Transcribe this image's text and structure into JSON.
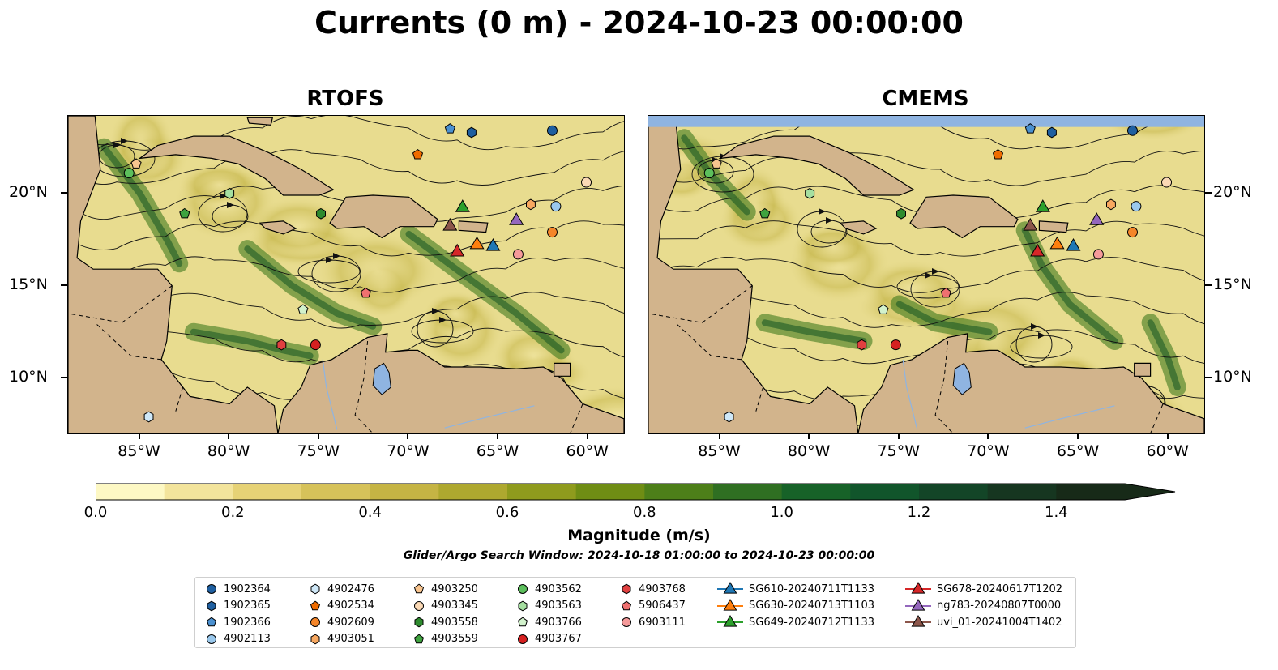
{
  "title": "Currents (0 m) - 2024-10-23 00:00:00",
  "panels": [
    {
      "title": "RTOFS"
    },
    {
      "title": "CMEMS"
    }
  ],
  "axes": {
    "lon_labels": [
      "85°W",
      "80°W",
      "75°W",
      "70°W",
      "65°W",
      "60°W"
    ],
    "lon_values": [
      -85,
      -80,
      -75,
      -70,
      -65,
      -60
    ],
    "lat_labels": [
      "20°N",
      "15°N",
      "10°N"
    ],
    "lat_values": [
      20,
      15,
      10
    ],
    "lon_range": [
      -89,
      -58
    ],
    "lat_range": [
      7,
      24.2
    ]
  },
  "colorbar": {
    "label": "Magnitude (m/s)",
    "tick_labels": [
      "0.0",
      "0.2",
      "0.4",
      "0.6",
      "0.8",
      "1.0",
      "1.2",
      "1.4"
    ],
    "tick_values": [
      0.0,
      0.2,
      0.4,
      0.6,
      0.8,
      1.0,
      1.2,
      1.4
    ],
    "range": [
      0,
      1.5
    ],
    "extend": "max",
    "colors": [
      "#fdf8c4",
      "#f3e49c",
      "#e6d276",
      "#d6c25a",
      "#c5b444",
      "#aea82f",
      "#8f9b1d",
      "#6f8d14",
      "#4d7f19",
      "#2f6f22",
      "#176228",
      "#11552b",
      "#134527",
      "#163620",
      "#172a18"
    ]
  },
  "search_window": "Glider/Argo Search Window: 2024-10-18 01:00:00 to 2024-10-23 00:00:00",
  "colors": {
    "land": "#d2b48c",
    "water_body": "#8fb4e1",
    "ocean_base": "#e8dc8f"
  },
  "legend": [
    {
      "label": "1902364",
      "marker": "circle",
      "color": "#1f5fa0"
    },
    {
      "label": "1902365",
      "marker": "hexagon",
      "color": "#1f5fa0"
    },
    {
      "label": "1902366",
      "marker": "pentagon",
      "color": "#4a90d0"
    },
    {
      "label": "4902113",
      "marker": "circle",
      "color": "#9ac8ec"
    },
    {
      "label": "4902476",
      "marker": "hexagon",
      "color": "#cfe8f8"
    },
    {
      "label": "4902534",
      "marker": "pentagon",
      "color": "#ef6c00"
    },
    {
      "label": "4902609",
      "marker": "circle",
      "color": "#f5862a"
    },
    {
      "label": "4903051",
      "marker": "hexagon",
      "color": "#f8a860"
    },
    {
      "label": "4903250",
      "marker": "pentagon",
      "color": "#f9c58f"
    },
    {
      "label": "4903345",
      "marker": "circle",
      "color": "#fbd9b5"
    },
    {
      "label": "4903558",
      "marker": "hexagon",
      "color": "#2e8b2e"
    },
    {
      "label": "4903559",
      "marker": "pentagon",
      "color": "#3fa33f"
    },
    {
      "label": "4903562",
      "marker": "circle",
      "color": "#5cbf5c"
    },
    {
      "label": "4903563",
      "marker": "hexagon",
      "color": "#a5dfa0"
    },
    {
      "label": "4903766",
      "marker": "pentagon",
      "color": "#d2f2cc"
    },
    {
      "label": "4903767",
      "marker": "circle",
      "color": "#d62020"
    },
    {
      "label": "4903768",
      "marker": "hexagon",
      "color": "#e04040"
    },
    {
      "label": "5906437",
      "marker": "pentagon",
      "color": "#ef7070"
    },
    {
      "label": "6903111",
      "marker": "circle",
      "color": "#f59a9a"
    },
    {
      "label": "SG610-20240711T1133",
      "marker": "triangle-line",
      "color": "#1f77b4"
    },
    {
      "label": "SG630-20240713T1103",
      "marker": "triangle-line",
      "color": "#ff7f0e"
    },
    {
      "label": "SG649-20240712T1133",
      "marker": "triangle-line",
      "color": "#2ca02c"
    },
    {
      "label": "SG678-20240617T1202",
      "marker": "triangle-line",
      "color": "#d62728"
    },
    {
      "label": "ng783-20240807T0000",
      "marker": "triangle-line",
      "color": "#9467bd"
    },
    {
      "label": "uvi_01-20241004T1402",
      "marker": "triangle-line",
      "color": "#8c564b"
    }
  ],
  "floats": [
    {
      "id": "1902364",
      "lon": -62,
      "lat": 23.4
    },
    {
      "id": "1902365",
      "lon": -66.5,
      "lat": 23.3
    },
    {
      "id": "1902366",
      "lon": -67.7,
      "lat": 23.5
    },
    {
      "id": "4902113",
      "lon": -61.8,
      "lat": 19.3
    },
    {
      "id": "4902476",
      "lon": -84.5,
      "lat": 7.9
    },
    {
      "id": "4902534",
      "lon": -69.5,
      "lat": 22.1
    },
    {
      "id": "4902609",
      "lon": -62,
      "lat": 17.9
    },
    {
      "id": "4903051",
      "lon": -63.2,
      "lat": 19.4
    },
    {
      "id": "4903250",
      "lon": -85.2,
      "lat": 21.6
    },
    {
      "id": "4903345",
      "lon": -60.1,
      "lat": 20.6
    },
    {
      "id": "4903558",
      "lon": -74.9,
      "lat": 18.9
    },
    {
      "id": "4903559",
      "lon": -82.5,
      "lat": 18.9
    },
    {
      "id": "4903562",
      "lon": -85.6,
      "lat": 21.1
    },
    {
      "id": "4903563",
      "lon": -80,
      "lat": 20
    },
    {
      "id": "4903766",
      "lon": -75.9,
      "lat": 13.7
    },
    {
      "id": "4903767",
      "lon": -75.2,
      "lat": 11.8
    },
    {
      "id": "4903768",
      "lon": -77.1,
      "lat": 11.8
    },
    {
      "id": "5906437",
      "lon": -72.4,
      "lat": 14.6
    },
    {
      "id": "6903111",
      "lon": -63.9,
      "lat": 16.7
    }
  ],
  "gliders": [
    {
      "id": "SG610-20240711T1133",
      "lon": -65.3,
      "lat": 17.2
    },
    {
      "id": "SG630-20240713T1103",
      "lon": -66.2,
      "lat": 17.3
    },
    {
      "id": "SG649-20240712T1133",
      "lon": -67,
      "lat": 19.3
    },
    {
      "id": "SG678-20240617T1202",
      "lon": -67.3,
      "lat": 16.9
    },
    {
      "id": "ng783-20240807T0000",
      "lon": -64,
      "lat": 18.6
    },
    {
      "id": "uvi_01-20241004T1402",
      "lon": -67.7,
      "lat": 18.3
    }
  ]
}
